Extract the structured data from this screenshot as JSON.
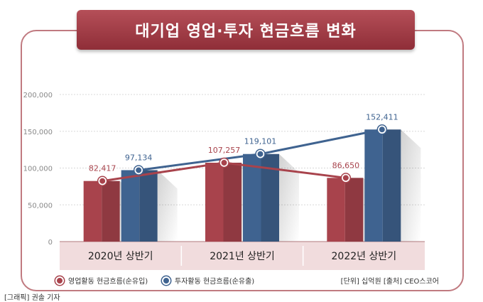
{
  "title": "대기업 영업·투자 현금흐름 변화",
  "colors": {
    "operating": "#a8434c",
    "investing": "#3f6390",
    "axis_band": "#f1dcdd"
  },
  "legend": {
    "operating_label": "영업활동 현금흐름(순유입)",
    "investing_label": "투자활동 현금흐름(순유출)"
  },
  "source_text": "[단위] 십억원   [출처] CEO스코어",
  "credit_text": "[그래픽] 권솔 기자",
  "chart_data": {
    "type": "bar",
    "categories": [
      "2020년 상반기",
      "2021년 상반기",
      "2022년 상반기"
    ],
    "series": [
      {
        "name": "영업활동 현금흐름(순유입)",
        "values": [
          82417,
          107257,
          86650
        ],
        "labels": [
          "82,417",
          "107,257",
          "86,650"
        ]
      },
      {
        "name": "투자활동 현금흐름(순유출)",
        "values": [
          97134,
          119101,
          152411
        ],
        "labels": [
          "97,134",
          "119,101",
          "152,411"
        ]
      }
    ],
    "ylim": [
      0,
      200000
    ],
    "yticks": [
      0,
      50000,
      100000,
      150000,
      200000
    ],
    "ytick_labels": [
      "0",
      "50,000",
      "100,000",
      "150,000",
      "200,000"
    ],
    "overlay": "line",
    "grid": true
  }
}
